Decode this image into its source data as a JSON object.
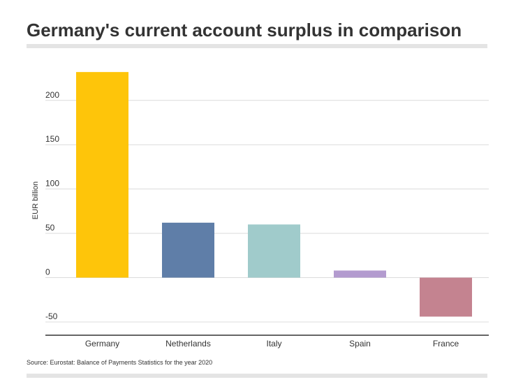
{
  "chart_data": {
    "type": "bar",
    "title": "Germany's current account surplus in comparison",
    "y_label": "EUR billion",
    "source": "Source: Eurostat: Balance of Payments Statistics for the year 2020",
    "categories": [
      "Germany",
      "Netherlands",
      "Italy",
      "Spain",
      "France"
    ],
    "values": [
      232,
      62,
      60,
      8,
      -44
    ],
    "colors": [
      "#fec50a",
      "#5f7ea8",
      "#a0cbcb",
      "#b39bcf",
      "#c48390"
    ],
    "ylim": [
      -65,
      240
    ],
    "yticks": [
      -50,
      0,
      50,
      100,
      150,
      200
    ],
    "grid": true
  }
}
